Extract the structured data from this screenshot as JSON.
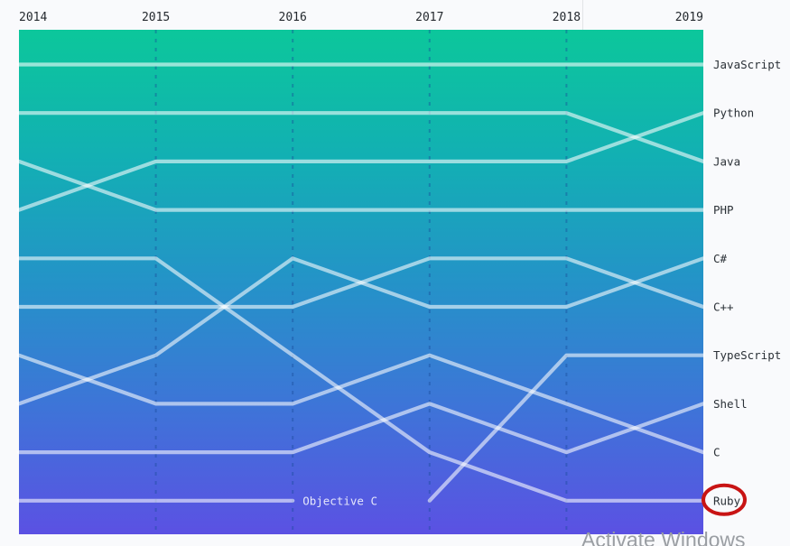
{
  "watermark": {
    "text": "Activate Windows"
  },
  "chart_data": {
    "type": "bump",
    "years": [
      "2014",
      "2015",
      "2016",
      "2017",
      "2018",
      "2019"
    ],
    "rank_axis": {
      "best": 1,
      "worst": 10,
      "orientation": "top-is-rank-1"
    },
    "legend_position": "right",
    "grid": "dashed-vertical-per-year",
    "series": [
      {
        "name": "JavaScript",
        "ranks": [
          1,
          1,
          1,
          1,
          1,
          1
        ]
      },
      {
        "name": "Python",
        "ranks": [
          4,
          3,
          3,
          3,
          3,
          2
        ]
      },
      {
        "name": "Java",
        "ranks": [
          2,
          2,
          2,
          2,
          2,
          3
        ]
      },
      {
        "name": "PHP",
        "ranks": [
          3,
          4,
          4,
          4,
          4,
          4
        ]
      },
      {
        "name": "C#",
        "ranks": [
          8,
          7,
          5,
          6,
          6,
          5
        ]
      },
      {
        "name": "C++",
        "ranks": [
          6,
          6,
          6,
          5,
          5,
          6
        ]
      },
      {
        "name": "TypeScript",
        "ranks": [
          null,
          null,
          null,
          10,
          7,
          7
        ]
      },
      {
        "name": "Shell",
        "ranks": [
          9,
          9,
          9,
          8,
          9,
          8
        ]
      },
      {
        "name": "C",
        "ranks": [
          7,
          8,
          8,
          7,
          8,
          9
        ]
      },
      {
        "name": "Ruby",
        "ranks": [
          5,
          5,
          7,
          9,
          10,
          10
        ]
      },
      {
        "name": "Objective C",
        "ranks": [
          10,
          10,
          10,
          null,
          null,
          null
        ],
        "inline_label": true
      }
    ],
    "annotation": {
      "shape": "ellipse",
      "target": "Ruby",
      "color": "#c81414"
    },
    "colors": {
      "gradient": [
        "#0cc79b",
        "#12b0b3",
        "#2493c8",
        "#3e74d8",
        "#5b51e3"
      ],
      "line": "rgba(255,255,255,0.58)",
      "grid": "rgba(23,74,153,0.42)",
      "label": "#24292e",
      "inline_label": "rgba(255,255,255,0.85)"
    }
  }
}
